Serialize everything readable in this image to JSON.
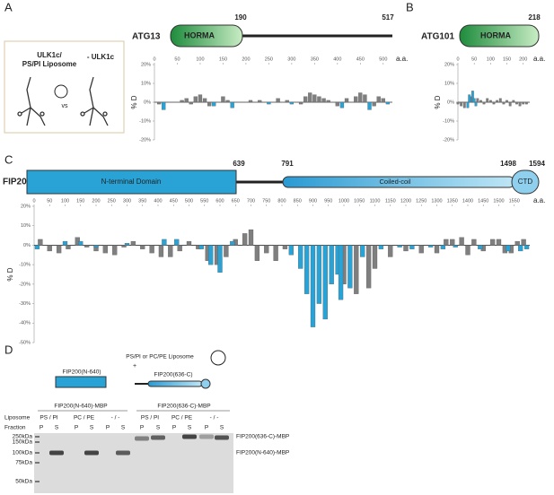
{
  "panels": {
    "A": {
      "label": "A",
      "protein": "ATG13",
      "domain": "HORMA",
      "positions": [
        190,
        517
      ],
      "inset": {
        "lines": [
          "ULK1c/",
          "PS/PI Liposome"
        ],
        "vs": "vs",
        "minus": "- ULK1c"
      }
    },
    "B": {
      "label": "B",
      "protein": "ATG101",
      "domain": "HORMA",
      "positions": [
        218
      ]
    },
    "C": {
      "label": "C",
      "protein": "FIP200",
      "domains": [
        "N-terminal Domain",
        "Coiled-coil",
        "CTD"
      ],
      "positions": [
        639,
        791,
        1498,
        1594
      ]
    },
    "D": {
      "label": "D",
      "title": "PS/PI or PC/PE Liposome",
      "plus": "+",
      "constructs": [
        "FIP200(N-640)",
        "FIP200(636-C)"
      ],
      "groups": [
        "FIP200(N-640)-MBP",
        "FIP200(636-C)-MBP"
      ],
      "row_labels": [
        "Liposome",
        "Fraction"
      ],
      "liposomes": [
        "PS / PI",
        "PC / PE",
        "- / -",
        "PS / PI",
        "PC / PE",
        "- / -"
      ],
      "fractions": [
        "P",
        "S",
        "P",
        "S",
        "P",
        "S",
        "P",
        "S",
        "P",
        "S",
        "P",
        "S"
      ],
      "markers": [
        "250kDa",
        "150kDa",
        "100kDa",
        "75kDa",
        "50kDa"
      ],
      "bands": [
        "FIP200(636-C)-MBP",
        "FIP200(N-640)-MBP"
      ]
    }
  },
  "chart_data": [
    {
      "type": "bar",
      "ylabel": "% D",
      "xlabel": "a.a.",
      "xlim": [
        0,
        520
      ],
      "xticks": [
        0,
        50,
        100,
        150,
        200,
        250,
        300,
        350,
        400,
        450,
        500
      ],
      "ylim": [
        -20,
        20
      ],
      "yticks": [
        {
          "value": 20,
          "label": "20%"
        },
        {
          "value": 10,
          "label": "10%"
        },
        {
          "value": 0,
          "label": "0%"
        },
        {
          "value": -10,
          "label": "-10%"
        },
        {
          "value": -20,
          "label": "-20%"
        }
      ],
      "series": [
        {
          "color": "#7f7f7f",
          "x": [
            10,
            60,
            70,
            80,
            90,
            100,
            110,
            120,
            150,
            160,
            210,
            230,
            270,
            290,
            320,
            330,
            340,
            350,
            360,
            370,
            380,
            400,
            420,
            440,
            450,
            460,
            480,
            490,
            500
          ],
          "values": [
            -1,
            1,
            2,
            -1,
            3,
            4,
            2,
            -2,
            3,
            1,
            1,
            1,
            2,
            1,
            -1,
            3,
            5,
            4,
            3,
            2,
            1,
            -2,
            2,
            3,
            5,
            4,
            -2,
            3,
            2
          ]
        },
        {
          "color": "#29a3d6",
          "x": [
            20,
            130,
            170,
            250,
            300,
            410,
            470,
            510
          ],
          "values": [
            -4,
            -2,
            -3,
            -1,
            -1,
            -3,
            -4,
            -1
          ]
        }
      ]
    },
    {
      "type": "bar",
      "ylabel": "% D",
      "xlabel": "a.a.",
      "xlim": [
        0,
        220
      ],
      "xticks": [
        0,
        50,
        100,
        150,
        200
      ],
      "ylim": [
        -20,
        20
      ],
      "yticks": [
        {
          "value": 20,
          "label": "20%"
        },
        {
          "value": 10,
          "label": "10%"
        },
        {
          "value": 0,
          "label": "0%"
        },
        {
          "value": -10,
          "label": "-10%"
        },
        {
          "value": -20,
          "label": "-20%"
        }
      ],
      "series": [
        {
          "color": "#7f7f7f",
          "x": [
            0,
            10,
            20,
            40,
            60,
            70,
            80,
            90,
            100,
            110,
            120,
            130,
            140,
            150,
            160,
            170,
            180,
            190,
            200,
            210
          ],
          "values": [
            -1,
            -2,
            -3,
            3,
            2,
            1,
            -1,
            2,
            1,
            -1,
            1,
            2,
            -1,
            1,
            -2,
            1,
            -1,
            -2,
            -1,
            -1
          ]
        },
        {
          "color": "#29a3d6",
          "x": [
            30,
            35,
            45,
            50,
            55
          ],
          "values": [
            -3,
            4,
            6,
            2,
            -2
          ]
        }
      ]
    },
    {
      "type": "bar",
      "ylabel": "% D",
      "xlabel": "a.a.",
      "xlim": [
        0,
        1600
      ],
      "xticks": [
        0,
        50,
        100,
        150,
        200,
        250,
        300,
        350,
        400,
        450,
        500,
        550,
        600,
        650,
        700,
        750,
        800,
        850,
        900,
        950,
        1000,
        1050,
        1100,
        1150,
        1200,
        1250,
        1300,
        1350,
        1400,
        1450,
        1500,
        1550
      ],
      "ylim": [
        -50,
        20
      ],
      "yticks": [
        {
          "value": 20,
          "label": "20%"
        },
        {
          "value": 10,
          "label": "10%"
        },
        {
          "value": 0,
          "label": "0%"
        },
        {
          "value": -10,
          "label": "-10%"
        },
        {
          "value": -20,
          "label": "-20%"
        },
        {
          "value": -30,
          "label": "-30%"
        },
        {
          "value": -40,
          "label": "-40%"
        },
        {
          "value": -50,
          "label": "-50%"
        }
      ],
      "series": [
        {
          "color": "#7f7f7f",
          "x": [
            20,
            50,
            80,
            110,
            140,
            170,
            200,
            230,
            260,
            290,
            320,
            350,
            380,
            410,
            440,
            470,
            500,
            530,
            560,
            590,
            620,
            650,
            680,
            700,
            720,
            750,
            780,
            810,
            1000,
            1040,
            1080,
            1100,
            1150,
            1200,
            1250,
            1300,
            1330,
            1350,
            1380,
            1400,
            1420,
            1450,
            1480,
            1500,
            1520,
            1540,
            1560,
            1580
          ],
          "values": [
            3,
            -3,
            -4,
            -2,
            4,
            -1,
            -3,
            -4,
            -5,
            -1,
            2,
            -2,
            -4,
            -6,
            -6,
            -3,
            2,
            -2,
            -8,
            -10,
            -6,
            3,
            6,
            8,
            -8,
            -4,
            -8,
            -2,
            -20,
            -25,
            -22,
            -12,
            -6,
            -3,
            -4,
            -4,
            3,
            3,
            4,
            -5,
            3,
            -3,
            3,
            3,
            -4,
            -4,
            2,
            3
          ]
        },
        {
          "color": "#29a3d6",
          "x": [
            10,
            100,
            150,
            200,
            300,
            420,
            460,
            540,
            570,
            600,
            640,
            830,
            860,
            880,
            900,
            920,
            940,
            960,
            980,
            990,
            1020,
            1060,
            1120,
            1180,
            1220,
            1280,
            1320,
            1360,
            1440,
            1530,
            1570,
            1590
          ],
          "values": [
            -2,
            2,
            2,
            -1,
            1,
            3,
            3,
            -2,
            -10,
            -14,
            2,
            -5,
            -12,
            -25,
            -42,
            -30,
            -38,
            -20,
            -15,
            -28,
            -22,
            -6,
            -2,
            -1,
            -2,
            -1,
            -2,
            -1,
            -2,
            -3,
            -3,
            -2
          ]
        }
      ]
    }
  ]
}
